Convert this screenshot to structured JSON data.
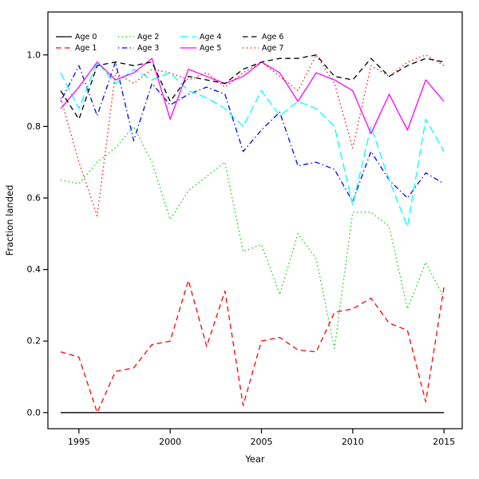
{
  "figure": {
    "background": "#ffffff"
  },
  "chart_data": {
    "type": "line",
    "title": "",
    "xlabel": "Year",
    "ylabel": "Fraction landed",
    "grid": false,
    "xlim": [
      1993.3,
      2016.0
    ],
    "ylim": [
      -0.045,
      1.12
    ],
    "xticks": [
      1995,
      2000,
      2005,
      2010,
      2015
    ],
    "yticks": [
      0.0,
      0.2,
      0.4,
      0.6,
      0.8,
      1.0
    ],
    "legend": {
      "position": "top-left",
      "rows": 2,
      "columns": 4,
      "order": "column-major",
      "frame": false
    },
    "x": [
      1994,
      1995,
      1996,
      1997,
      1998,
      1999,
      2000,
      2001,
      2002,
      2003,
      2004,
      2005,
      2006,
      2007,
      2008,
      2009,
      2010,
      2011,
      2012,
      2013,
      2014,
      2015
    ],
    "series": [
      {
        "name": "Age 0",
        "color": "#000000",
        "linestyle": "solid",
        "values": [
          0,
          0,
          0,
          0,
          0,
          0,
          0,
          0,
          0,
          0,
          0,
          0,
          0,
          0,
          0,
          0,
          0,
          0,
          0,
          0,
          0,
          0
        ]
      },
      {
        "name": "Age 1",
        "color": "#FF0000",
        "linestyle": "dashed",
        "values": [
          0.17,
          0.155,
          0.0,
          0.115,
          0.125,
          0.19,
          0.2,
          0.37,
          0.185,
          0.34,
          0.02,
          0.2,
          0.21,
          0.175,
          0.17,
          0.28,
          0.29,
          0.32,
          0.25,
          0.23,
          0.03,
          0.35
        ]
      },
      {
        "name": "Age 2",
        "color": "#00CC00",
        "linestyle": "dotted",
        "values": [
          0.65,
          0.64,
          0.7,
          0.74,
          0.8,
          0.7,
          0.54,
          0.62,
          0.66,
          0.7,
          0.45,
          0.47,
          0.33,
          0.5,
          0.43,
          0.18,
          0.56,
          0.56,
          0.52,
          0.29,
          0.42,
          0.32
        ]
      },
      {
        "name": "Age 3",
        "color": "#0000FF",
        "linestyle": "dashdot",
        "values": [
          0.87,
          0.97,
          0.83,
          0.98,
          0.76,
          0.92,
          0.86,
          0.89,
          0.91,
          0.89,
          0.73,
          0.79,
          0.84,
          0.69,
          0.7,
          0.68,
          0.59,
          0.73,
          0.65,
          0.6,
          0.67,
          0.64
        ]
      },
      {
        "name": "Age 4",
        "color": "#00FFFF",
        "linestyle": "longdash",
        "values": [
          0.95,
          0.85,
          0.98,
          0.92,
          0.96,
          0.93,
          0.95,
          0.9,
          0.88,
          0.85,
          0.8,
          0.9,
          0.83,
          0.87,
          0.85,
          0.8,
          0.58,
          0.8,
          0.65,
          0.52,
          0.82,
          0.73
        ]
      },
      {
        "name": "Age 5",
        "color": "#FF00FF",
        "linestyle": "solid",
        "values": [
          0.85,
          0.91,
          0.98,
          0.93,
          0.95,
          0.99,
          0.82,
          0.96,
          0.94,
          0.92,
          0.94,
          0.98,
          0.95,
          0.87,
          0.95,
          0.93,
          0.9,
          0.78,
          0.89,
          0.79,
          0.93,
          0.87
        ]
      },
      {
        "name": "Age 6",
        "color": "#000000",
        "linestyle": "dashed",
        "values": [
          0.9,
          0.82,
          0.97,
          0.98,
          0.97,
          0.98,
          0.87,
          0.94,
          0.93,
          0.92,
          0.96,
          0.98,
          0.99,
          0.99,
          1.0,
          0.94,
          0.93,
          0.99,
          0.94,
          0.97,
          0.99,
          0.98
        ]
      },
      {
        "name": "Age 7",
        "color": "#FF0000",
        "linestyle": "dotted",
        "values": [
          0.88,
          0.7,
          0.55,
          0.95,
          0.92,
          0.96,
          0.95,
          0.93,
          0.95,
          0.91,
          0.95,
          0.98,
          0.94,
          0.9,
          1.0,
          0.92,
          0.74,
          0.97,
          0.94,
          0.98,
          1.0,
          0.97
        ]
      }
    ]
  }
}
